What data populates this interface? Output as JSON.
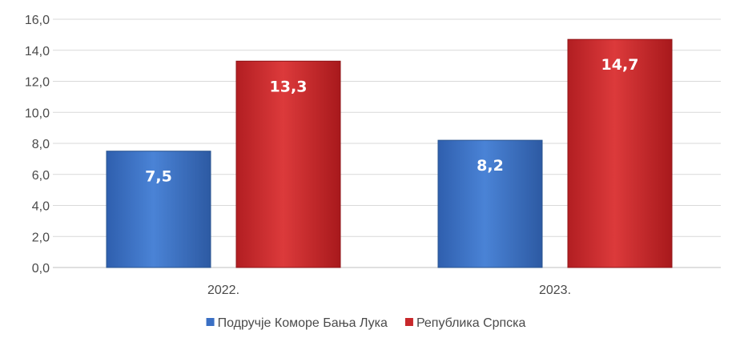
{
  "chart_data": {
    "type": "bar",
    "title": "",
    "xlabel": "",
    "ylabel": "",
    "categories": [
      "2022.",
      "2023."
    ],
    "series": [
      {
        "name": "Подручје Коморе Бања Лука",
        "values": [
          7.5,
          8.2
        ],
        "labels": [
          "7,5",
          "8,2"
        ],
        "color": "#3a6fc4"
      },
      {
        "name": "Република Српска",
        "values": [
          13.3,
          14.7
        ],
        "labels": [
          "13,3",
          "14,7"
        ],
        "color": "#c8282b"
      }
    ],
    "ylim": [
      0,
      16
    ],
    "yticks": [
      "0,0",
      "2,0",
      "4,0",
      "6,0",
      "8,0",
      "10,0",
      "12,0",
      "14,0",
      "16,0"
    ],
    "grid": true,
    "legend_position": "bottom"
  }
}
